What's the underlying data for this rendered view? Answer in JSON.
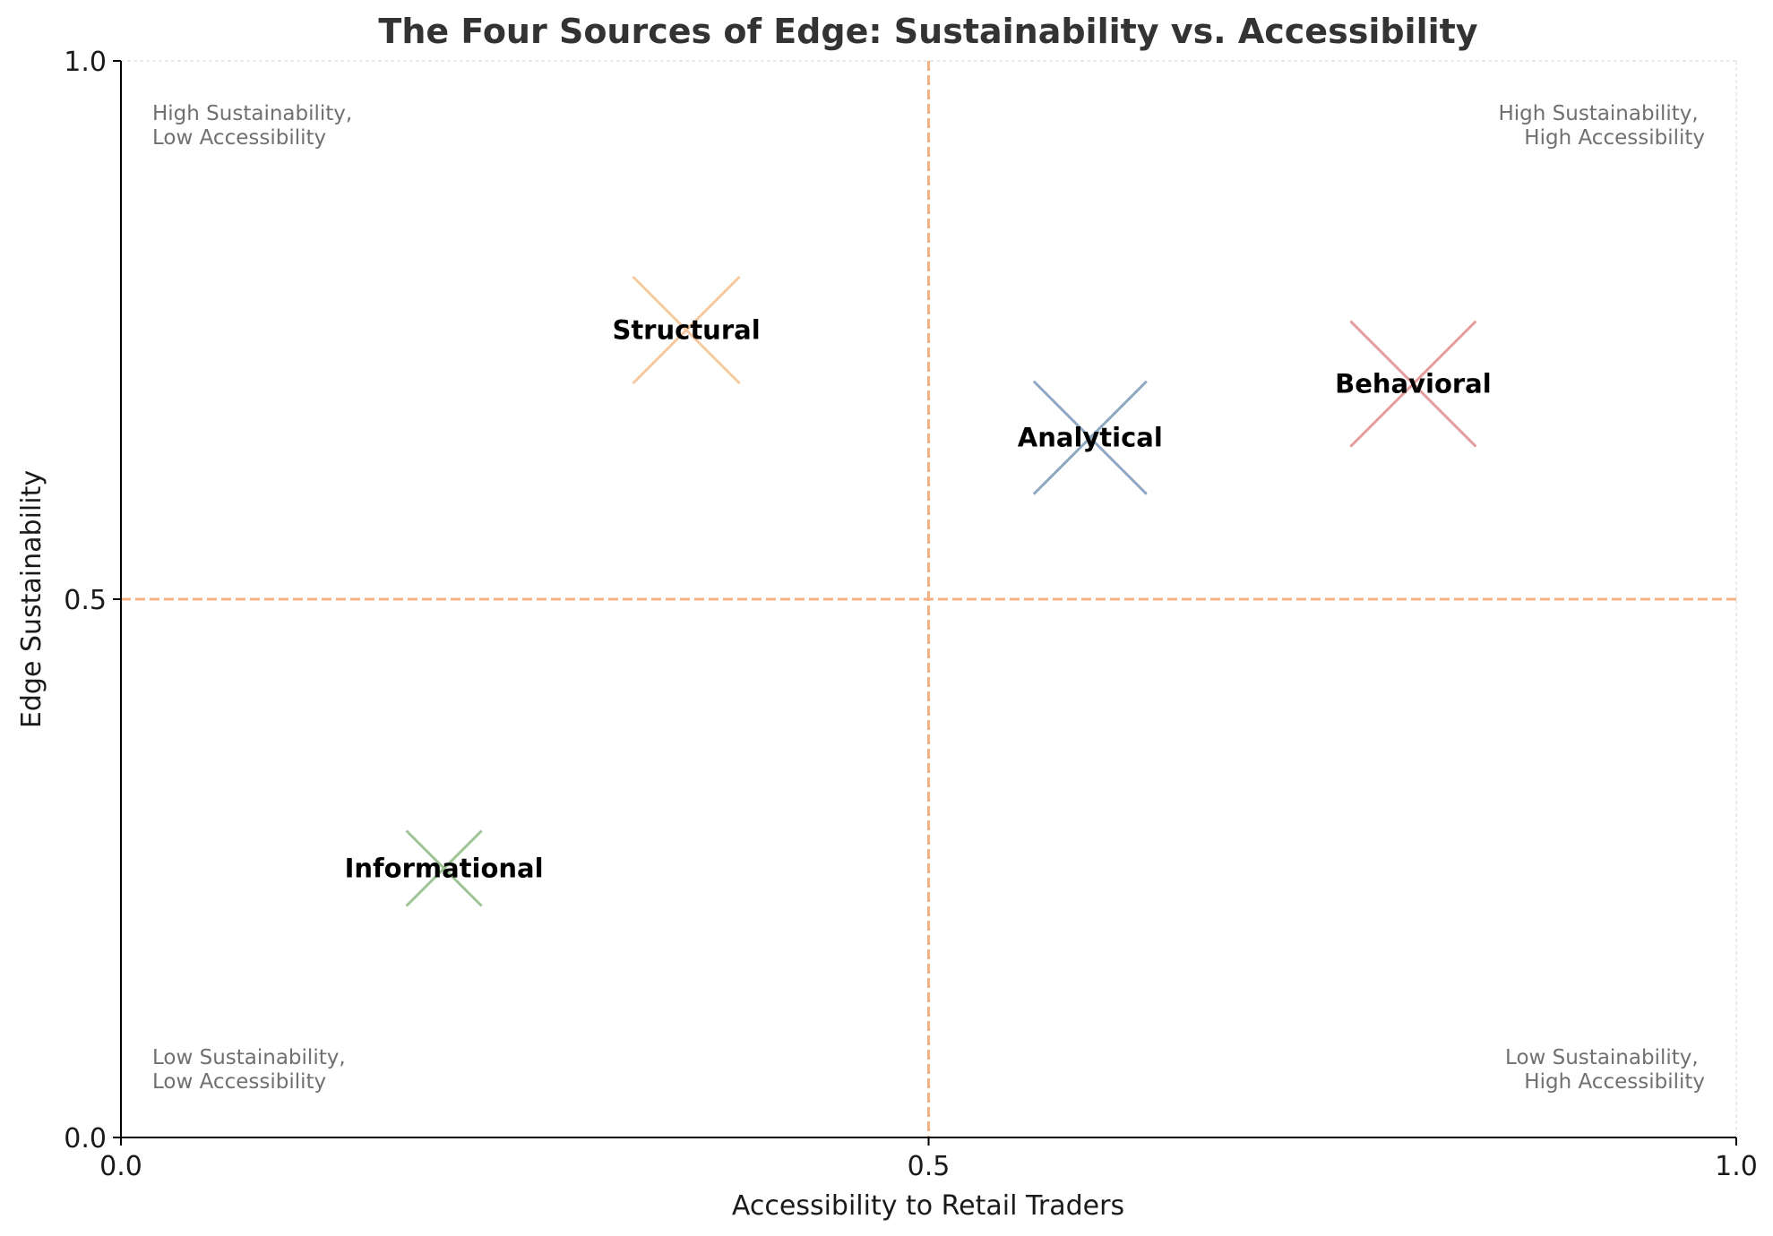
{
  "chart_data": {
    "type": "scatter",
    "title": "The Four Sources of Edge: Sustainability vs. Accessibility",
    "xlabel": "Accessibility to Retail Traders",
    "ylabel": "Edge Sustainability",
    "xlim": [
      0.0,
      1.0
    ],
    "ylim": [
      0.0,
      1.0
    ],
    "xticks": [
      "0.0",
      "0.5",
      "1.0"
    ],
    "yticks": [
      "0.0",
      "0.5",
      "1.0"
    ],
    "grid": false,
    "reference_lines": {
      "x": 0.5,
      "y": 0.5,
      "style": "dashed",
      "color": "#f4b183"
    },
    "marker": "x",
    "points": [
      {
        "label": "Informational",
        "x": 0.2,
        "y": 0.25,
        "color": "#9dc493",
        "size": 0.6
      },
      {
        "label": "Structural",
        "x": 0.35,
        "y": 0.75,
        "color": "#f6c8a0",
        "size": 0.85
      },
      {
        "label": "Analytical",
        "x": 0.6,
        "y": 0.65,
        "color": "#8fa9c4",
        "size": 0.9
      },
      {
        "label": "Behavioral",
        "x": 0.8,
        "y": 0.7,
        "color": "#e39d9d",
        "size": 1.0
      }
    ],
    "quadrant_labels": {
      "top_left": [
        "High Sustainability,",
        "Low Accessibility"
      ],
      "top_right": [
        "High Sustainability,",
        "High Accessibility"
      ],
      "bottom_left": [
        "Low Sustainability,",
        "Low Accessibility"
      ],
      "bottom_right": [
        "Low Sustainability,",
        "High Accessibility"
      ]
    }
  }
}
